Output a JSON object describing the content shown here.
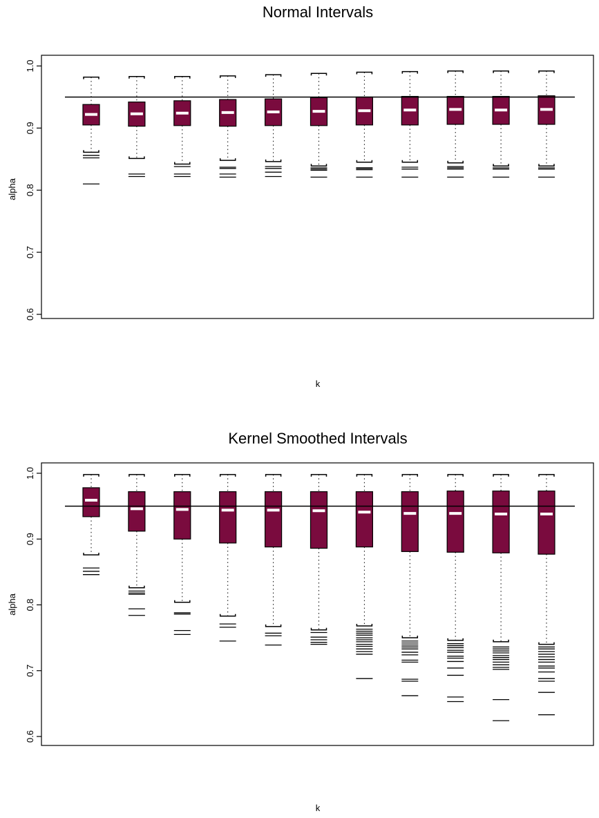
{
  "colors": {
    "box_fill": "#7a0b3e",
    "median": "#ffffff",
    "line": "#000000"
  },
  "chart_data": [
    {
      "type": "boxplot",
      "title": "Normal Intervals",
      "xlabel": "k",
      "ylabel": "alpha",
      "ylim": [
        0.6,
        1.0
      ],
      "yticks": [
        "0.6",
        "0.7",
        "0.8",
        "0.9",
        "1.0"
      ],
      "reference_line": 0.95,
      "boxes": [
        {
          "q1": 0.905,
          "median": 0.922,
          "q3": 0.938,
          "whisker_low": 0.861,
          "whisker_high": 0.982,
          "outliers": [
            0.856,
            0.852,
            0.81
          ]
        },
        {
          "q1": 0.903,
          "median": 0.923,
          "q3": 0.942,
          "whisker_low": 0.851,
          "whisker_high": 0.983,
          "outliers": [
            0.826,
            0.822
          ]
        },
        {
          "q1": 0.904,
          "median": 0.924,
          "q3": 0.944,
          "whisker_low": 0.842,
          "whisker_high": 0.983,
          "outliers": [
            0.838,
            0.826,
            0.822
          ]
        },
        {
          "q1": 0.903,
          "median": 0.925,
          "q3": 0.946,
          "whisker_low": 0.848,
          "whisker_high": 0.984,
          "outliers": [
            0.837,
            0.835,
            0.826,
            0.821
          ]
        },
        {
          "q1": 0.904,
          "median": 0.926,
          "q3": 0.947,
          "whisker_low": 0.846,
          "whisker_high": 0.986,
          "outliers": [
            0.838,
            0.835,
            0.829,
            0.822
          ]
        },
        {
          "q1": 0.904,
          "median": 0.927,
          "q3": 0.949,
          "whisker_low": 0.839,
          "whisker_high": 0.988,
          "outliers": [
            0.836,
            0.834,
            0.832,
            0.821
          ]
        },
        {
          "q1": 0.905,
          "median": 0.928,
          "q3": 0.95,
          "whisker_low": 0.845,
          "whisker_high": 0.99,
          "outliers": [
            0.836,
            0.835,
            0.833,
            0.821
          ]
        },
        {
          "q1": 0.905,
          "median": 0.929,
          "q3": 0.951,
          "whisker_low": 0.845,
          "whisker_high": 0.991,
          "outliers": [
            0.837,
            0.834,
            0.821
          ]
        },
        {
          "q1": 0.906,
          "median": 0.93,
          "q3": 0.951,
          "whisker_low": 0.844,
          "whisker_high": 0.992,
          "outliers": [
            0.838,
            0.836,
            0.834,
            0.821
          ]
        },
        {
          "q1": 0.906,
          "median": 0.929,
          "q3": 0.951,
          "whisker_low": 0.839,
          "whisker_high": 0.992,
          "outliers": [
            0.836,
            0.834,
            0.821
          ]
        },
        {
          "q1": 0.906,
          "median": 0.93,
          "q3": 0.952,
          "whisker_low": 0.839,
          "whisker_high": 0.992,
          "outliers": [
            0.836,
            0.834,
            0.821
          ]
        }
      ]
    },
    {
      "type": "boxplot",
      "title": "Kernel Smoothed Intervals",
      "xlabel": "k",
      "ylabel": "alpha",
      "ylim": [
        0.6,
        1.0
      ],
      "yticks": [
        "0.6",
        "0.7",
        "0.8",
        "0.9",
        "1.0"
      ],
      "reference_line": 0.95,
      "boxes": [
        {
          "q1": 0.934,
          "median": 0.959,
          "q3": 0.978,
          "whisker_low": 0.876,
          "whisker_high": 0.998,
          "outliers": [
            0.856,
            0.851,
            0.846
          ]
        },
        {
          "q1": 0.912,
          "median": 0.946,
          "q3": 0.972,
          "whisker_low": 0.826,
          "whisker_high": 0.998,
          "outliers": [
            0.821,
            0.818,
            0.816,
            0.794,
            0.784
          ]
        },
        {
          "q1": 0.9,
          "median": 0.945,
          "q3": 0.972,
          "whisker_low": 0.804,
          "whisker_high": 0.998,
          "outliers": [
            0.788,
            0.786,
            0.761,
            0.755
          ]
        },
        {
          "q1": 0.894,
          "median": 0.944,
          "q3": 0.972,
          "whisker_low": 0.783,
          "whisker_high": 0.998,
          "outliers": [
            0.771,
            0.766,
            0.745
          ]
        },
        {
          "q1": 0.888,
          "median": 0.944,
          "q3": 0.972,
          "whisker_low": 0.767,
          "whisker_high": 0.998,
          "outliers": [
            0.757,
            0.753,
            0.739
          ]
        },
        {
          "q1": 0.886,
          "median": 0.943,
          "q3": 0.972,
          "whisker_low": 0.762,
          "whisker_high": 0.998,
          "outliers": [
            0.758,
            0.751,
            0.747,
            0.743,
            0.74
          ]
        },
        {
          "q1": 0.888,
          "median": 0.941,
          "q3": 0.972,
          "whisker_low": 0.768,
          "whisker_high": 0.998,
          "outliers": [
            0.763,
            0.76,
            0.757,
            0.754,
            0.75,
            0.747,
            0.744,
            0.74,
            0.737,
            0.733,
            0.729,
            0.725,
            0.688
          ]
        },
        {
          "q1": 0.881,
          "median": 0.939,
          "q3": 0.972,
          "whisker_low": 0.75,
          "whisker_high": 0.998,
          "outliers": [
            0.745,
            0.742,
            0.739,
            0.736,
            0.733,
            0.728,
            0.724,
            0.716,
            0.713,
            0.687,
            0.684,
            0.662
          ]
        },
        {
          "q1": 0.88,
          "median": 0.939,
          "q3": 0.973,
          "whisker_low": 0.746,
          "whisker_high": 0.998,
          "outliers": [
            0.741,
            0.738,
            0.735,
            0.731,
            0.728,
            0.722,
            0.719,
            0.714,
            0.704,
            0.693,
            0.66,
            0.653
          ]
        },
        {
          "q1": 0.879,
          "median": 0.938,
          "q3": 0.973,
          "whisker_low": 0.744,
          "whisker_high": 0.998,
          "outliers": [
            0.736,
            0.733,
            0.73,
            0.727,
            0.723,
            0.72,
            0.717,
            0.713,
            0.709,
            0.705,
            0.702,
            0.656,
            0.624
          ]
        },
        {
          "q1": 0.877,
          "median": 0.938,
          "q3": 0.973,
          "whisker_low": 0.74,
          "whisker_high": 0.998,
          "outliers": [
            0.736,
            0.733,
            0.729,
            0.725,
            0.721,
            0.717,
            0.713,
            0.707,
            0.704,
            0.698,
            0.688,
            0.684,
            0.667,
            0.633
          ]
        }
      ]
    }
  ]
}
